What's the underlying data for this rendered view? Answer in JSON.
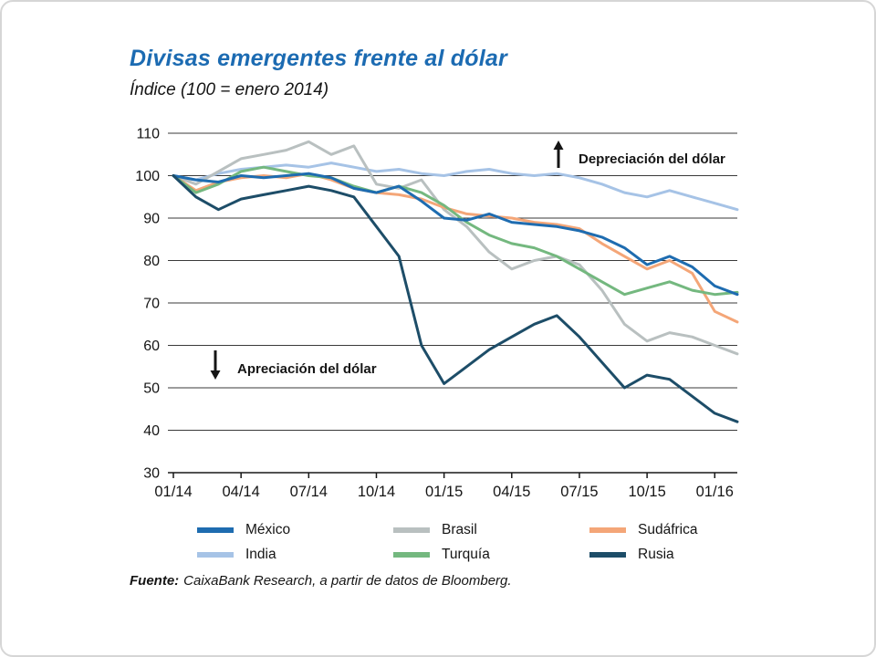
{
  "page": {
    "title": "Divisas emergentes frente al dólar",
    "subtitle": "Índice (100 = enero 2014)",
    "source_label": "Fuente:",
    "source_text": "CaixaBank Research, a partir de datos de Bloomberg."
  },
  "chart_data": {
    "type": "line",
    "title": "Divisas emergentes frente al dólar",
    "subtitle": "Índice (100 = enero 2014)",
    "ylim": [
      30,
      110
    ],
    "yticks": [
      110,
      100,
      90,
      80,
      70,
      60,
      50,
      40,
      30
    ],
    "grid": "horizontal",
    "legend_position": "bottom",
    "x_months": [
      "01/14",
      "02/14",
      "03/14",
      "04/14",
      "05/14",
      "06/14",
      "07/14",
      "08/14",
      "09/14",
      "10/14",
      "11/14",
      "12/14",
      "01/15",
      "02/15",
      "03/15",
      "04/15",
      "05/15",
      "06/15",
      "07/15",
      "08/15",
      "09/15",
      "10/15",
      "11/15",
      "12/15",
      "01/16",
      "02/16"
    ],
    "x_tick_labels": [
      "01/14",
      "04/14",
      "07/14",
      "10/14",
      "01/15",
      "04/15",
      "07/15",
      "10/15",
      "01/16"
    ],
    "annotations": [
      {
        "arrow": "up",
        "text": "Depreciación del dólar"
      },
      {
        "arrow": "down",
        "text": "Apreciación del dólar"
      }
    ],
    "series": [
      {
        "key": "india",
        "name": "India",
        "color": "#a6c3e6",
        "values": [
          100,
          99,
          100.5,
          101.5,
          102,
          102.5,
          102,
          103,
          102,
          101,
          101.5,
          100.5,
          100,
          101,
          101.5,
          100.5,
          100,
          100.5,
          99.5,
          98,
          96,
          95,
          96.5,
          95,
          93.5,
          92
        ]
      },
      {
        "key": "brasil",
        "name": "Brasil",
        "color": "#b9c0c0",
        "values": [
          100,
          98,
          101,
          104,
          105,
          106,
          108,
          105,
          107,
          98,
          97,
          99,
          92,
          88,
          82,
          78,
          80,
          81,
          79,
          73,
          65,
          61,
          63,
          62,
          60,
          58
        ]
      },
      {
        "key": "sudafrica",
        "name": "Sudáfrica",
        "color": "#f4a678",
        "values": [
          100,
          96.5,
          98.5,
          99.5,
          100,
          99.5,
          100.5,
          99,
          97,
          96,
          95.5,
          94.5,
          92.5,
          91,
          90.5,
          90,
          89,
          88.5,
          87.5,
          84,
          81,
          78,
          80,
          77,
          68,
          65.5
        ]
      },
      {
        "key": "turquia",
        "name": "Turquía",
        "color": "#74b87f",
        "values": [
          100,
          96,
          98,
          101,
          102,
          101,
          100,
          99.5,
          97.5,
          96,
          97.5,
          96,
          93,
          89,
          86,
          84,
          83,
          81,
          78,
          75,
          72,
          73.5,
          75,
          73,
          72,
          72.5
        ]
      },
      {
        "key": "mexico",
        "name": "México",
        "color": "#1e6cb0",
        "values": [
          100,
          99,
          98.5,
          100,
          99.5,
          100,
          100.5,
          99.5,
          97,
          96,
          97.5,
          94,
          90,
          89.5,
          91,
          89,
          88.5,
          88,
          87,
          85.5,
          83,
          79,
          81,
          78.5,
          74,
          72
        ]
      },
      {
        "key": "rusia",
        "name": "Rusia",
        "color": "#1d4d68",
        "values": [
          100,
          95,
          92,
          94.5,
          95.5,
          96.5,
          97.5,
          96.5,
          95,
          88,
          81,
          60,
          51,
          55,
          59,
          62,
          65,
          67,
          62,
          56,
          50,
          53,
          52,
          48,
          44,
          42
        ]
      }
    ],
    "legend_order": [
      "mexico",
      "brasil",
      "sudafrica",
      "india",
      "turquia",
      "rusia"
    ]
  }
}
